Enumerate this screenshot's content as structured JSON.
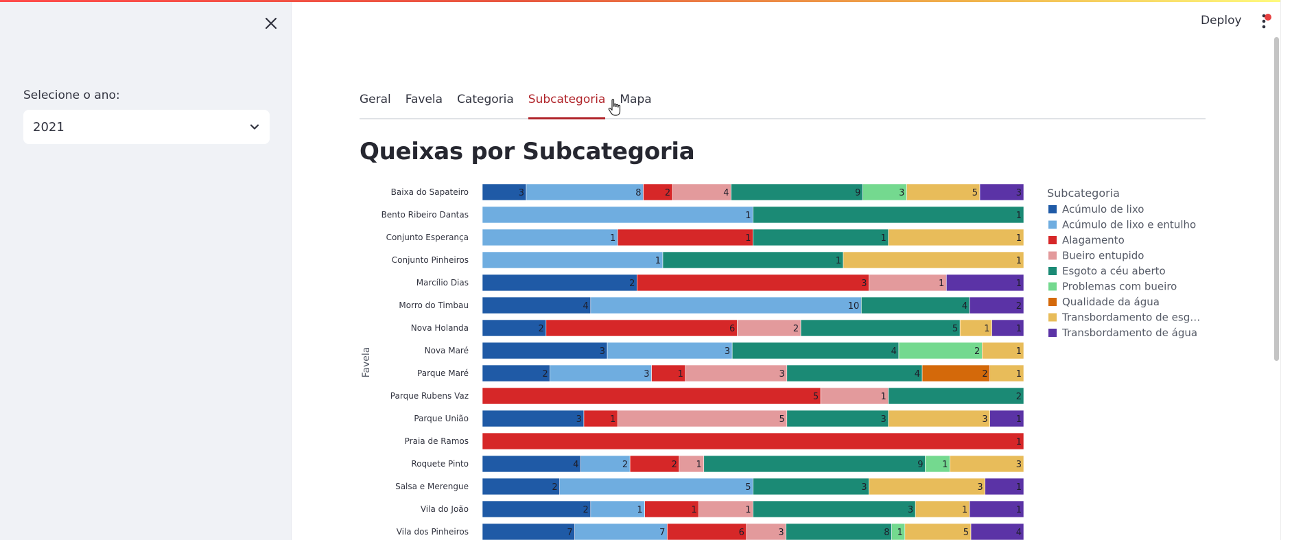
{
  "sidebar": {
    "year_label": "Selecione o ano:",
    "year_value": "2021",
    "close_icon": "close-icon",
    "dropdown_icon": "chevron-down-icon"
  },
  "header": {
    "deploy_label": "Deploy",
    "menu_icon": "kebab-menu-icon"
  },
  "tabs": [
    {
      "label": "Geral",
      "active": false
    },
    {
      "label": "Favela",
      "active": false
    },
    {
      "label": "Categoria",
      "active": false
    },
    {
      "label": "Subcategoria",
      "active": true
    },
    {
      "label": "Mapa",
      "active": false
    }
  ],
  "main": {
    "title": "Queixas por Subcategoria"
  },
  "colors": {
    "accent": "#b0242a"
  },
  "chart_data": {
    "type": "bar",
    "orientation": "horizontal",
    "stacked": true,
    "ylabel": "Favela",
    "legend_title": "Subcategoria",
    "legend_position": "right",
    "categories": [
      "Baixa do Sapateiro",
      "Bento Ribeiro Dantas",
      "Conjunto Esperança",
      "Conjunto Pinheiros",
      "Marcílio Dias",
      "Morro do Timbau",
      "Nova Holanda",
      "Nova Maré",
      "Parque Maré",
      "Parque Rubens Vaz",
      "Parque União",
      "Praia de Ramos",
      "Roquete Pinto",
      "Salsa e Merengue",
      "Vila do João",
      "Vila dos Pinheiros"
    ],
    "series": [
      {
        "name": "Acúmulo de lixo",
        "color": "#1f5aa6",
        "values": [
          3,
          0,
          0,
          0,
          2,
          4,
          2,
          3,
          2,
          0,
          3,
          0,
          4,
          2,
          2,
          7
        ]
      },
      {
        "name": "Acúmulo de lixo e entulho",
        "color": "#6fade0",
        "values": [
          8,
          1,
          1,
          1,
          0,
          10,
          0,
          3,
          3,
          0,
          0,
          0,
          2,
          5,
          1,
          7
        ]
      },
      {
        "name": "Alagamento",
        "color": "#d62728",
        "values": [
          2,
          0,
          1,
          0,
          3,
          0,
          6,
          0,
          1,
          5,
          1,
          1,
          2,
          0,
          1,
          6
        ]
      },
      {
        "name": "Bueiro entupido",
        "color": "#e39a9c",
        "values": [
          4,
          0,
          0,
          0,
          1,
          0,
          2,
          0,
          3,
          1,
          5,
          0,
          1,
          0,
          1,
          3
        ]
      },
      {
        "name": "Esgoto a céu aberto",
        "color": "#1b8a75",
        "values": [
          9,
          1,
          1,
          1,
          0,
          4,
          5,
          4,
          4,
          2,
          3,
          0,
          9,
          3,
          3,
          8
        ]
      },
      {
        "name": "Problemas com bueiro",
        "color": "#74d98f",
        "values": [
          3,
          0,
          0,
          0,
          0,
          0,
          0,
          2,
          0,
          0,
          0,
          0,
          1,
          0,
          0,
          1
        ]
      },
      {
        "name": "Qualidade da água",
        "color": "#d4690a",
        "values": [
          0,
          0,
          0,
          0,
          0,
          0,
          0,
          0,
          2,
          0,
          0,
          0,
          0,
          0,
          0,
          0
        ]
      },
      {
        "name": "Transbordamento de esg…",
        "color": "#e8bc5a",
        "values": [
          5,
          0,
          1,
          1,
          0,
          0,
          1,
          1,
          1,
          0,
          3,
          0,
          3,
          3,
          1,
          5
        ]
      },
      {
        "name": "Transbordamento de água",
        "color": "#5b33a6",
        "values": [
          3,
          0,
          0,
          0,
          1,
          2,
          1,
          0,
          0,
          0,
          1,
          0,
          0,
          1,
          1,
          4
        ]
      }
    ]
  }
}
